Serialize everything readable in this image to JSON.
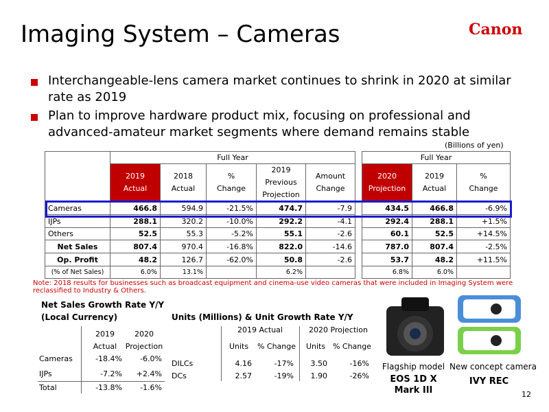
{
  "header": {
    "title": "Imaging System – Cameras",
    "logo": "Canon"
  },
  "bullets": [
    "Interchangeable-lens camera market continues to shrink in 2020 at similar rate as 2019",
    "Plan to improve hardware product mix, focusing on professional and advanced-amateur market segments where demand remains stable"
  ],
  "unit_note": "(Billions of yen)",
  "main_table": {
    "left_header": "Full Year",
    "right_header": "Full Year",
    "left_columns": [
      [
        "2019",
        "Actual"
      ],
      [
        "2018",
        "Actual"
      ],
      [
        "%",
        "Change"
      ],
      [
        "2019",
        "Previous",
        "Projection"
      ],
      [
        "Amount",
        "Change"
      ]
    ],
    "right_columns": [
      [
        "2020",
        "Projection"
      ],
      [
        "2019",
        "Actual"
      ],
      [
        "%",
        "Change"
      ]
    ],
    "rows": [
      {
        "label": "Cameras",
        "left": [
          "466.8",
          "594.9",
          "-21.5%",
          "474.7",
          "-7.9"
        ],
        "right": [
          "434.5",
          "466.8",
          "-6.9%"
        ]
      },
      {
        "label": "IJPs",
        "left": [
          "288.1",
          "320.2",
          "-10.0%",
          "292.2",
          "-4.1"
        ],
        "right": [
          "292.4",
          "288.1",
          "+1.5%"
        ]
      },
      {
        "label": "Others",
        "left": [
          "52.5",
          "55.3",
          "-5.2%",
          "55.1",
          "-2.6"
        ],
        "right": [
          "60.1",
          "52.5",
          "+14.5%"
        ]
      },
      {
        "label": "Net Sales",
        "left": [
          "807.4",
          "970.4",
          "-16.8%",
          "822.0",
          "-14.6"
        ],
        "right": [
          "787.0",
          "807.4",
          "-2.5%"
        ]
      },
      {
        "label": "Op. Profit",
        "left": [
          "48.2",
          "126.7",
          "-62.0%",
          "50.8",
          "-2.6"
        ],
        "right": [
          "53.7",
          "48.2",
          "+11.5%"
        ]
      },
      {
        "label": "(% of Net Sales)",
        "left": [
          "6.0%",
          "13.1%",
          null,
          "6.2%",
          null
        ],
        "right": [
          "6.8%",
          "6.0%",
          null
        ]
      }
    ]
  },
  "note": "Note: 2018 results for businesses such as broadcast equipment and cinema-use video cameras that were included in Imaging System were reclassified to Industry & Others.",
  "growth_table": {
    "title": "Net Sales Growth Rate Y/Y",
    "subtitle": "(Local Currency)",
    "columns": [
      [
        "2019",
        "Actual"
      ],
      [
        "2020",
        "Projection"
      ]
    ],
    "rows": [
      {
        "label": "Cameras",
        "values": [
          "-18.4%",
          "-6.0%"
        ]
      },
      {
        "label": "IJPs",
        "values": [
          "-7.2%",
          "+2.4%"
        ]
      },
      {
        "label": "Total",
        "values": [
          "-13.8%",
          "-1.6%"
        ]
      }
    ]
  },
  "units_table": {
    "title": "Units (Millions) & Unit Growth Rate Y/Y",
    "groups": [
      "2019 Actual",
      "2020 Projection"
    ],
    "columns": [
      "Units",
      "% Change",
      "Units",
      "% Change"
    ],
    "rows": [
      {
        "label": "DILCs",
        "values": [
          "4.16",
          "-17%",
          "3.50",
          "-16%"
        ]
      },
      {
        "label": "DCs",
        "values": [
          "2.57",
          "-19%",
          "1.90",
          "-26%"
        ]
      }
    ]
  },
  "products": [
    {
      "caption": "Flagship model",
      "name": [
        "EOS 1D X",
        "Mark III"
      ]
    },
    {
      "caption": "New concept camera",
      "name": [
        "IVY REC"
      ]
    }
  ],
  "page_number": "12"
}
